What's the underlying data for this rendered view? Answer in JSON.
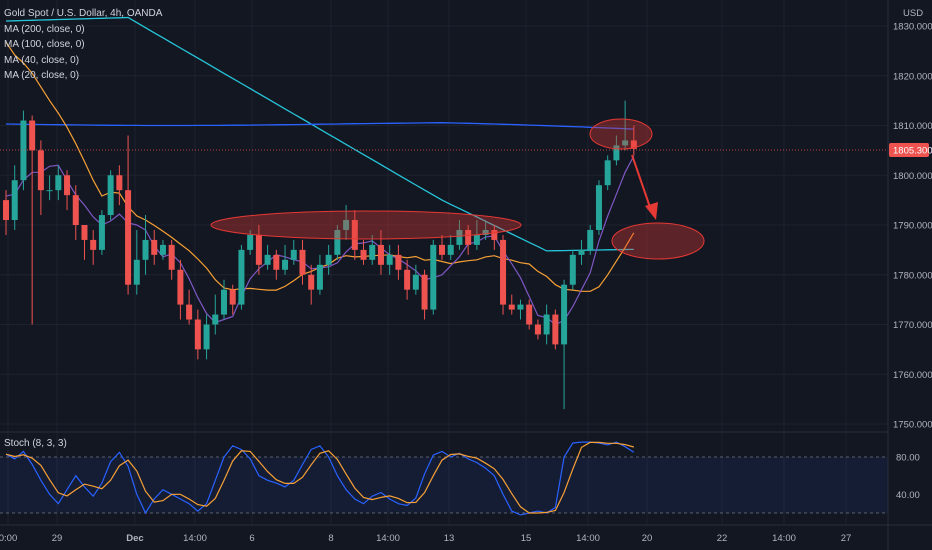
{
  "header": {
    "title": "Gold Spot / U.S. Dollar, 4h, OANDA",
    "indicators": [
      "MA (200, close, 0)",
      "MA (100, close, 0)",
      "MA (40, close, 0)",
      "MA (20, close, 0)"
    ]
  },
  "currency": "USD",
  "last_price_label": "1805.300",
  "stoch_label": "Stoch (8, 3, 3)",
  "colors": {
    "background": "#131722",
    "up": "#26a69a",
    "down": "#ef5350",
    "ma200": "#26c6da",
    "ma100": "#2962ff",
    "ma40": "#f7a035",
    "ma20": "#7e57c2",
    "stoch_k": "#2962ff",
    "stoch_d": "#f7a035",
    "highlight": "#e53935"
  },
  "chart_data": {
    "type": "candlestick",
    "price_axis": {
      "ticks": [
        1830,
        1820,
        1810,
        1800,
        1790,
        1780,
        1770,
        1760,
        1750
      ],
      "tick_labels": [
        "1830.000",
        "1820.000",
        "1810.000",
        "1800.000",
        "1790.000",
        "1780.000",
        "1770.000",
        "1760.000",
        "1750.000"
      ],
      "range": [
        1748,
        1834
      ]
    },
    "time_axis": {
      "labels": [
        "0:00",
        "29",
        "Dec",
        "14:00",
        "6",
        "8",
        "14:00",
        "13",
        "15",
        "14:00",
        "20",
        "22",
        "14:00",
        "27"
      ]
    },
    "stoch_axis": {
      "ticks": [
        80,
        40
      ],
      "tick_labels": [
        "80.00",
        "40.00"
      ],
      "range": [
        0,
        100
      ],
      "bands": [
        80,
        20
      ]
    },
    "last_price": 1805.3,
    "candles": [
      [
        1795,
        1791,
        1797,
        1788
      ],
      [
        1791,
        1799,
        1802,
        1789
      ],
      [
        1799,
        1811,
        1813,
        1797
      ],
      [
        1811,
        1805,
        1812,
        1770
      ],
      [
        1805,
        1797,
        1807,
        1792
      ],
      [
        1797,
        1797,
        1800,
        1795
      ],
      [
        1797,
        1800,
        1802,
        1795
      ],
      [
        1800,
        1796,
        1801,
        1793
      ],
      [
        1796,
        1790,
        1798,
        1787
      ],
      [
        1790,
        1787,
        1790,
        1783
      ],
      [
        1787,
        1785,
        1789,
        1782
      ],
      [
        1785,
        1792,
        1793,
        1784
      ],
      [
        1792,
        1800,
        1801,
        1791
      ],
      [
        1800,
        1797,
        1802,
        1794
      ],
      [
        1797,
        1778,
        1808,
        1776
      ],
      [
        1778,
        1783,
        1789,
        1776
      ],
      [
        1783,
        1787,
        1792,
        1780
      ],
      [
        1787,
        1784,
        1789,
        1782
      ],
      [
        1784,
        1786,
        1787,
        1783
      ],
      [
        1786,
        1781,
        1787,
        1779
      ],
      [
        1781,
        1774,
        1783,
        1771
      ],
      [
        1774,
        1771,
        1777,
        1770
      ],
      [
        1771,
        1765,
        1773,
        1763
      ],
      [
        1765,
        1770,
        1772,
        1763
      ],
      [
        1770,
        1772,
        1776,
        1768
      ],
      [
        1772,
        1777,
        1779,
        1771
      ],
      [
        1777,
        1774,
        1778,
        1772
      ],
      [
        1774,
        1785,
        1786,
        1773
      ],
      [
        1785,
        1788,
        1789,
        1784
      ],
      [
        1788,
        1782,
        1790,
        1780
      ],
      [
        1782,
        1784,
        1786,
        1781
      ],
      [
        1784,
        1781,
        1785,
        1779
      ],
      [
        1781,
        1783,
        1786,
        1780
      ],
      [
        1783,
        1785,
        1787,
        1782
      ],
      [
        1785,
        1780,
        1787,
        1778
      ],
      [
        1780,
        1777,
        1782,
        1774
      ],
      [
        1777,
        1782,
        1784,
        1776
      ],
      [
        1782,
        1784,
        1786,
        1780
      ],
      [
        1784,
        1789,
        1790,
        1783
      ],
      [
        1789,
        1791,
        1794,
        1787
      ],
      [
        1791,
        1785,
        1793,
        1783
      ],
      [
        1785,
        1783,
        1787,
        1782
      ],
      [
        1783,
        1786,
        1788,
        1782
      ],
      [
        1786,
        1782,
        1789,
        1780
      ],
      [
        1782,
        1784,
        1786,
        1780
      ],
      [
        1784,
        1781,
        1786,
        1779
      ],
      [
        1781,
        1777,
        1783,
        1775
      ],
      [
        1777,
        1780,
        1782,
        1776
      ],
      [
        1780,
        1773,
        1781,
        1771
      ],
      [
        1773,
        1786,
        1787,
        1772
      ],
      [
        1786,
        1784,
        1788,
        1783
      ],
      [
        1784,
        1786,
        1788,
        1783
      ],
      [
        1786,
        1789,
        1791,
        1785
      ],
      [
        1789,
        1786,
        1790,
        1784
      ],
      [
        1786,
        1788,
        1791,
        1785
      ],
      [
        1788,
        1789,
        1791,
        1787
      ],
      [
        1789,
        1787,
        1790,
        1785
      ],
      [
        1787,
        1774,
        1788,
        1772
      ],
      [
        1774,
        1773,
        1776,
        1772
      ],
      [
        1773,
        1774,
        1775,
        1771
      ],
      [
        1774,
        1770,
        1775,
        1769
      ],
      [
        1770,
        1768,
        1771,
        1767
      ],
      [
        1768,
        1772,
        1774,
        1766
      ],
      [
        1772,
        1766,
        1773,
        1765
      ],
      [
        1766,
        1778,
        1779,
        1753
      ],
      [
        1778,
        1784,
        1785,
        1777
      ],
      [
        1784,
        1785,
        1787,
        1782
      ],
      [
        1785,
        1789,
        1790,
        1784
      ],
      [
        1789,
        1798,
        1799,
        1788
      ],
      [
        1798,
        1803,
        1804,
        1797
      ],
      [
        1803,
        1806,
        1808,
        1802
      ],
      [
        1806,
        1807,
        1815,
        1805
      ],
      [
        1807,
        1805.3,
        1810,
        1804
      ]
    ]
  }
}
